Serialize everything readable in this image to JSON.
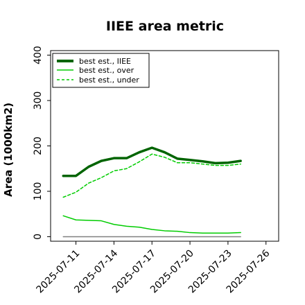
{
  "chart_data": {
    "type": "line",
    "title": "IIEE area metric",
    "xlabel": "",
    "ylabel": "Area (1000km2)",
    "x": [
      "2025-07-10",
      "2025-07-11",
      "2025-07-12",
      "2025-07-13",
      "2025-07-14",
      "2025-07-15",
      "2025-07-16",
      "2025-07-17",
      "2025-07-18",
      "2025-07-19",
      "2025-07-20",
      "2025-07-21",
      "2025-07-22",
      "2025-07-23",
      "2025-07-24"
    ],
    "xticks": [
      "2025-07-11",
      "2025-07-14",
      "2025-07-17",
      "2025-07-20",
      "2025-07-23",
      "2025-07-26"
    ],
    "xlim": [
      "2025-07-09",
      "2025-07-27"
    ],
    "ylim": [
      -10,
      410
    ],
    "yticks": [
      0,
      100,
      200,
      300,
      400
    ],
    "grid": false,
    "legend_position": "top-left",
    "series": [
      {
        "name": "best est., IIEE",
        "color": "#006400",
        "style": "solid",
        "width": "thick",
        "values": [
          134,
          134,
          154,
          167,
          173,
          173,
          186,
          196,
          186,
          172,
          169,
          166,
          162,
          163,
          167
        ]
      },
      {
        "name": "best est., over",
        "color": "#00cc00",
        "style": "solid",
        "width": "thin",
        "values": [
          46,
          37,
          36,
          35,
          27,
          23,
          21,
          16,
          13,
          12,
          9,
          8,
          8,
          8,
          9
        ]
      },
      {
        "name": "best est., under",
        "color": "#00cc00",
        "style": "dashed",
        "width": "thin",
        "values": [
          87,
          98,
          118,
          130,
          145,
          150,
          165,
          182,
          175,
          163,
          163,
          160,
          157,
          157,
          160
        ]
      },
      {
        "name": "",
        "color": "#808080",
        "style": "solid",
        "width": "thin",
        "values": [
          0,
          0,
          0,
          0,
          0,
          0,
          0,
          0,
          0,
          0,
          0,
          0,
          0,
          0,
          0
        ]
      }
    ]
  }
}
